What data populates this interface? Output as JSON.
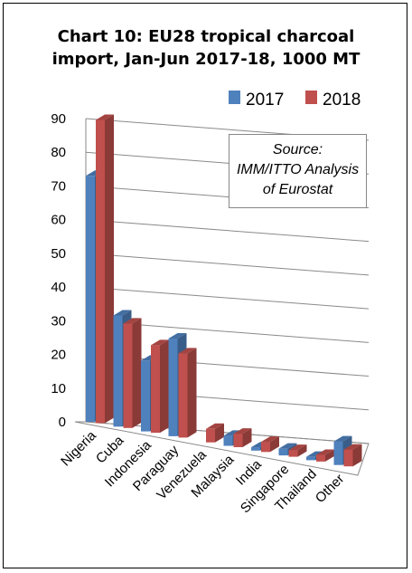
{
  "chart_data": {
    "type": "bar",
    "title": "Chart 10: EU28 tropical charcoal\nimport, Jan-Jun 2017-18, 1000 MT",
    "categories": [
      "Nigeria",
      "Cuba",
      "Indonesia",
      "Paraguay",
      "Venezuela",
      "Malaysia",
      "India",
      "Singapore",
      "Thailand",
      "Other"
    ],
    "series": [
      {
        "name": "2017",
        "color": "#4f81bd",
        "values": [
          73,
          33,
          21,
          29,
          0,
          3,
          1,
          2,
          1,
          7
        ]
      },
      {
        "name": "2018",
        "color": "#c0504d",
        "values": [
          90,
          31,
          26,
          25,
          4,
          4,
          3,
          2,
          2,
          5
        ]
      }
    ],
    "ylim": [
      0,
      90
    ],
    "yticks": [
      "0",
      "10",
      "20",
      "30",
      "40",
      "50",
      "60",
      "70",
      "80",
      "90"
    ],
    "grid": true,
    "legend": "top-right",
    "annotation": {
      "line1": "Source:",
      "line2": "IMM/ITTO Analysis",
      "line3": "of Eurostat"
    }
  }
}
